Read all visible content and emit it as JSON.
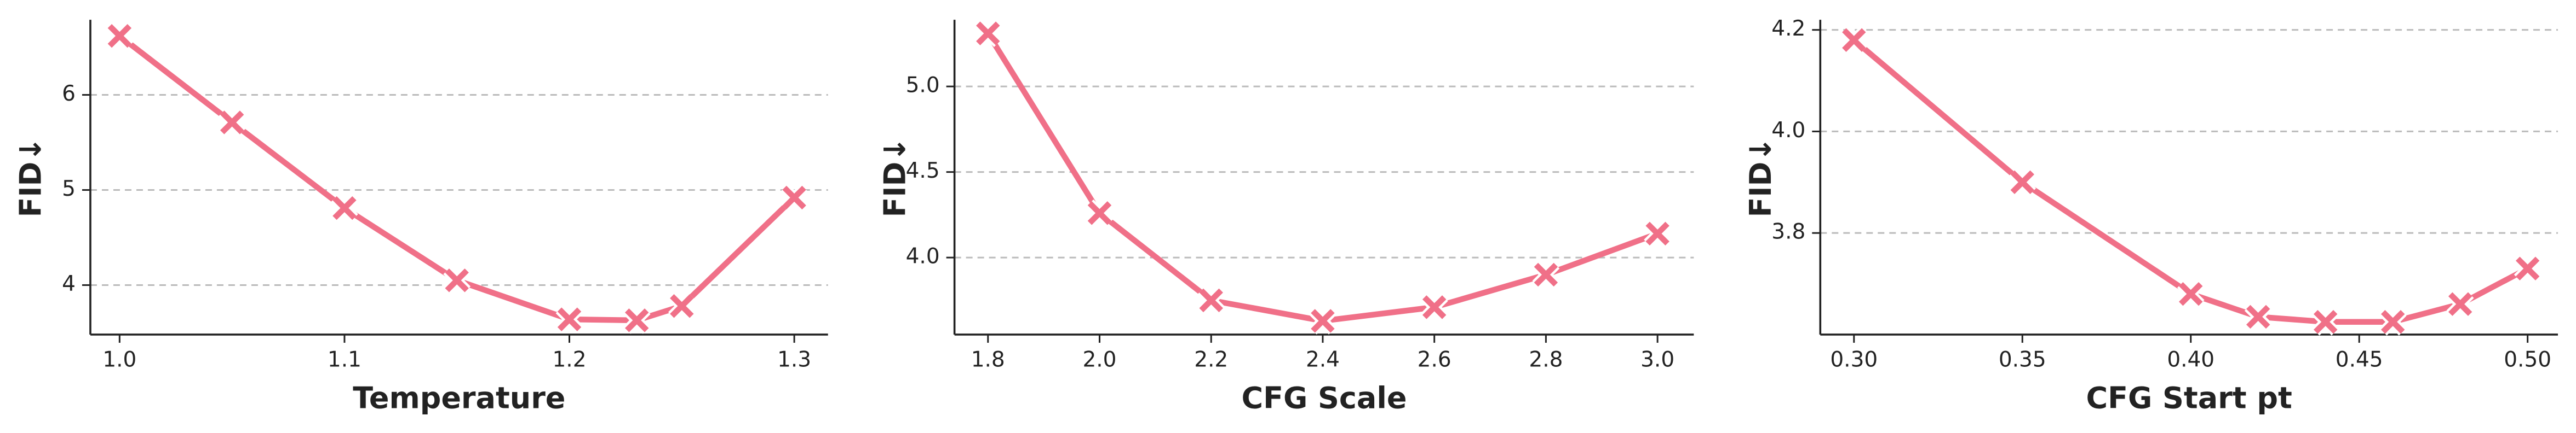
{
  "chart_data": [
    {
      "type": "line",
      "xlabel": "Temperature",
      "ylabel": "FID↓",
      "color": "#f07088",
      "marker": "x",
      "grid": true,
      "x": [
        1.0,
        1.05,
        1.1,
        1.15,
        1.2,
        1.23,
        1.25,
        1.3
      ],
      "values": [
        6.62,
        5.71,
        4.81,
        4.05,
        3.64,
        3.63,
        3.78,
        4.92
      ],
      "xlim": [
        0.987,
        1.315
      ],
      "ylim": [
        3.48,
        6.79
      ],
      "xticks": [
        {
          "value": 1,
          "label": "1.0"
        },
        1.1,
        1.2,
        1.3
      ],
      "yticks": [
        4,
        5,
        6
      ]
    },
    {
      "type": "line",
      "xlabel": "CFG Scale",
      "ylabel": "FID↓",
      "color": "#f07088",
      "marker": "x",
      "grid": true,
      "x": [
        1.8,
        2.0,
        2.2,
        2.4,
        2.6,
        2.8,
        3.0
      ],
      "values": [
        5.31,
        4.26,
        3.75,
        3.63,
        3.71,
        3.9,
        4.14
      ],
      "xlim": [
        1.74,
        3.065
      ],
      "ylim": [
        3.55,
        5.39
      ],
      "xticks": [
        1.8,
        {
          "value": 2,
          "label": "2.0"
        },
        2.2,
        2.4,
        2.6,
        2.8,
        {
          "value": 3,
          "label": "3.0"
        }
      ],
      "yticks": [
        {
          "value": 4,
          "label": "4.0"
        },
        4.5,
        {
          "value": 5,
          "label": "5.0"
        }
      ]
    },
    {
      "type": "line",
      "xlabel": "CFG Start pt",
      "ylabel": "FID↓",
      "color": "#f07088",
      "marker": "x",
      "grid": true,
      "x": [
        0.3,
        0.35,
        0.4,
        0.42,
        0.44,
        0.46,
        0.48,
        0.5
      ],
      "values": [
        4.18,
        3.9,
        3.68,
        3.635,
        3.625,
        3.625,
        3.66,
        3.73
      ],
      "xlim": [
        0.29,
        0.509
      ],
      "ylim": [
        3.6,
        4.22
      ],
      "xticks": [
        {
          "value": 0.3,
          "label": "0.30"
        },
        0.35,
        {
          "value": 0.4,
          "label": "0.40"
        },
        0.45,
        {
          "value": 0.5,
          "label": "0.50"
        }
      ],
      "yticks": [
        3.8,
        {
          "value": 4,
          "label": "4.0"
        },
        4.2
      ]
    }
  ]
}
